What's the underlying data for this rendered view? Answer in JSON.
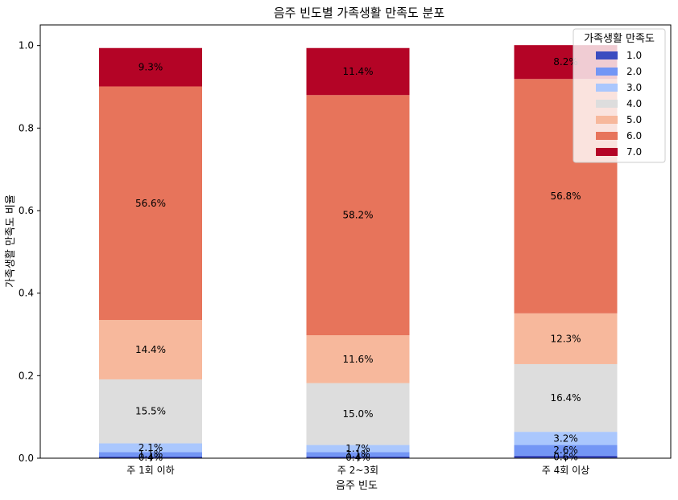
{
  "chart_data": {
    "type": "bar",
    "stacked": true,
    "title": "음주 빈도별 가족생활 만족도 분포",
    "xlabel": "음주 빈도",
    "ylabel": "가족생활 만족도 비율",
    "ylim": [
      0,
      1.05
    ],
    "yticks": [
      "0.0",
      "0.2",
      "0.4",
      "0.6",
      "0.8",
      "1.0"
    ],
    "ytick_values": [
      0,
      0.2,
      0.4,
      0.6,
      0.8,
      1.0
    ],
    "grid": false,
    "categories": [
      "주 1회 이하",
      "주 2~3회",
      "주 4회 이상"
    ],
    "legend": {
      "title": "가족생활 만족도",
      "placement": "top-right"
    },
    "series": [
      {
        "name": "1.0",
        "color": "#3b4cc0",
        "values": [
          0.004,
          0.004,
          0.006
        ],
        "labels": [
          "0.4%",
          "0.4%",
          "0.6%"
        ]
      },
      {
        "name": "2.0",
        "color": "#7396f5",
        "values": [
          0.011,
          0.011,
          0.026
        ],
        "labels": [
          "1.1%",
          "1.1%",
          "2.6%"
        ]
      },
      {
        "name": "3.0",
        "color": "#aac7fd",
        "values": [
          0.021,
          0.017,
          0.032
        ],
        "labels": [
          "2.1%",
          "1.7%",
          "3.2%"
        ]
      },
      {
        "name": "4.0",
        "color": "#dddddd",
        "values": [
          0.155,
          0.15,
          0.164
        ],
        "labels": [
          "15.5%",
          "15.0%",
          "16.4%"
        ]
      },
      {
        "name": "5.0",
        "color": "#f7b89c",
        "values": [
          0.144,
          0.116,
          0.123
        ],
        "labels": [
          "14.4%",
          "11.6%",
          "12.3%"
        ]
      },
      {
        "name": "6.0",
        "color": "#e7745b",
        "values": [
          0.566,
          0.582,
          0.568
        ],
        "labels": [
          "56.6%",
          "58.2%",
          "56.8%"
        ]
      },
      {
        "name": "7.0",
        "color": "#b40426",
        "values": [
          0.093,
          0.114,
          0.082
        ],
        "labels": [
          "9.3%",
          "11.4%",
          "8.2%"
        ]
      }
    ]
  }
}
